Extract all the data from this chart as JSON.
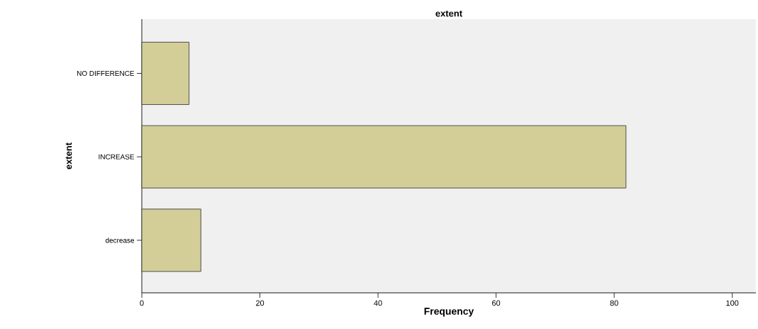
{
  "chart_data": {
    "type": "bar",
    "orientation": "horizontal",
    "title": "extent",
    "xlabel": "Frequency",
    "ylabel": "extent",
    "categories": [
      "NO DIFFERENCE",
      "INCREASE",
      "decrease"
    ],
    "values": [
      8,
      82,
      10
    ],
    "color": "#d3ce98",
    "xlim": [
      0,
      104
    ],
    "xticks": [
      0,
      20,
      40,
      60,
      80,
      100
    ],
    "grid": false
  }
}
